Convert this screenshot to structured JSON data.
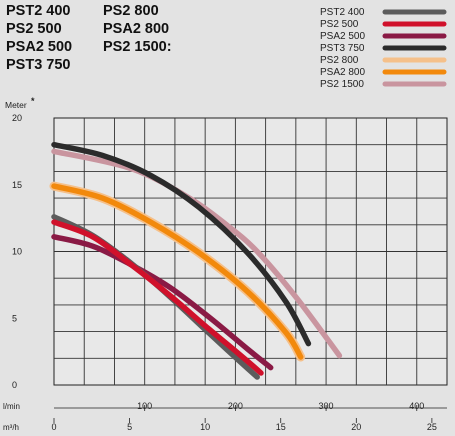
{
  "header": {
    "col1": [
      "PST2 400",
      "PS2 500",
      "PSA2 500",
      "PST3 750"
    ],
    "col2": [
      "PS2 800",
      "PSA2 800",
      "PS2 1500:"
    ]
  },
  "chart_data": {
    "type": "line",
    "ylabel": "Meter",
    "ylabel_mark": "*",
    "xlabel_lmin": "l/min",
    "xlabel_m3h": "m³/h",
    "ylim": [
      0,
      20
    ],
    "yticks": [
      0,
      5,
      10,
      15,
      20
    ],
    "xlim": [
      0,
      26
    ],
    "xticks_m3h": [
      0,
      5,
      10,
      15,
      20,
      25
    ],
    "xticks_lmin": [
      100,
      200,
      300,
      400
    ],
    "grid": true,
    "legend_position": "top-right",
    "series": [
      {
        "name": "PST2 400",
        "color": "#5c5c5c",
        "x": [
          0,
          4,
          8,
          12,
          16,
          19,
          21
        ],
        "y": [
          12.6,
          11.2,
          9.1,
          6.6,
          3.9,
          1.9,
          0.6
        ]
      },
      {
        "name": "PS2 500",
        "color": "#d0112b",
        "x": [
          0,
          4,
          8,
          12,
          16,
          19,
          21.4
        ],
        "y": [
          12.2,
          11.1,
          9.0,
          6.7,
          4.2,
          2.4,
          0.9
        ]
      },
      {
        "name": "PSA2 500",
        "color": "#8a1a45",
        "x": [
          0,
          4,
          8,
          12,
          16,
          20,
          22.4
        ],
        "y": [
          11.1,
          10.4,
          9.0,
          7.3,
          5.1,
          2.7,
          1.3
        ]
      },
      {
        "name": "PST3 750",
        "color": "#2b2b2b",
        "x": [
          0,
          5,
          10,
          15,
          20,
          24,
          26.3
        ],
        "y": [
          18.0,
          17.2,
          15.7,
          13.3,
          9.9,
          6.2,
          3.1
        ]
      },
      {
        "name": "PS2 800",
        "color": "#f5c08a",
        "x": [
          0,
          5,
          10,
          15,
          20,
          24,
          25.5
        ],
        "y": [
          14.9,
          14.0,
          12.2,
          9.9,
          7.0,
          3.9,
          2.1
        ]
      },
      {
        "name": "PSA2 800",
        "color": "#f2890c",
        "x": [
          0,
          5,
          10,
          15,
          20,
          24,
          25.5
        ],
        "y": [
          14.9,
          14.0,
          12.2,
          9.9,
          7.0,
          3.9,
          2.1
        ]
      },
      {
        "name": "PS2 1500",
        "color": "#c9959f",
        "x": [
          0,
          8,
          14,
          18,
          21,
          25,
          29.5
        ],
        "y": [
          17.5,
          16.2,
          14.0,
          11.9,
          10.0,
          6.6,
          2.2
        ]
      }
    ]
  }
}
